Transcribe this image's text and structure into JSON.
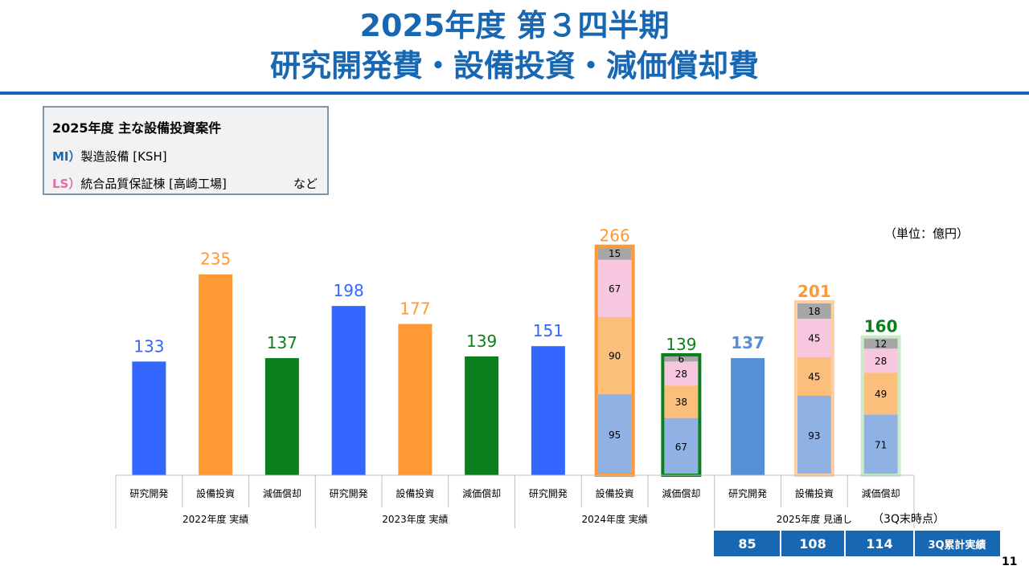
{
  "title": {
    "line1": "2025年度 第３四半期",
    "line2": "研究開発費・設備投資・減価償却費"
  },
  "note": {
    "title": "2025年度 主な設備投資案件",
    "items": [
      {
        "tag": "MI）",
        "text": "製造設備 [KSH]"
      },
      {
        "tag": "LS）",
        "text": "統合品質保証棟 [高崎工場]"
      }
    ],
    "suffix": "など"
  },
  "unit_label": "（単位：億円）",
  "page_number": "11",
  "colors": {
    "title_blue": "#1767b3",
    "rd": "#3366ff",
    "capex": "#ff9933",
    "dep": "#0b7f1d",
    "rd_2025": "#568fd8",
    "seg_blue": "#8fb1e3",
    "seg_orange": "#fbbe7b",
    "seg_pink": "#f6c7df",
    "seg_gray": "#a6a6a6",
    "forecast_bar": "#1767b3"
  },
  "chart_data": {
    "type": "bar",
    "unit": "億円",
    "categories": [
      "研究開発",
      "設備投資",
      "減価償却"
    ],
    "groups": [
      {
        "label": "2022年度 実績",
        "values": [
          133,
          235,
          137
        ]
      },
      {
        "label": "2023年度 実績",
        "values": [
          198,
          177,
          139
        ]
      },
      {
        "label": "2024年度 実績",
        "values": [
          151,
          266,
          139
        ],
        "stacks": {
          "設備投資": [
            95,
            90,
            67,
            15
          ],
          "減価償却": [
            67,
            38,
            28,
            6
          ]
        }
      },
      {
        "label": "2025年度 見通し",
        "values": [
          137,
          201,
          160
        ],
        "stacks": {
          "設備投資": [
            93,
            45,
            45,
            18
          ],
          "減価償却": [
            71,
            49,
            28,
            12
          ]
        }
      }
    ],
    "segment_order": [
      "blue",
      "orange",
      "pink",
      "gray"
    ],
    "q3_label": "（3Q末時点）",
    "q3_actual": {
      "label": "3Q累計実績",
      "values": [
        85,
        108,
        114
      ]
    }
  }
}
